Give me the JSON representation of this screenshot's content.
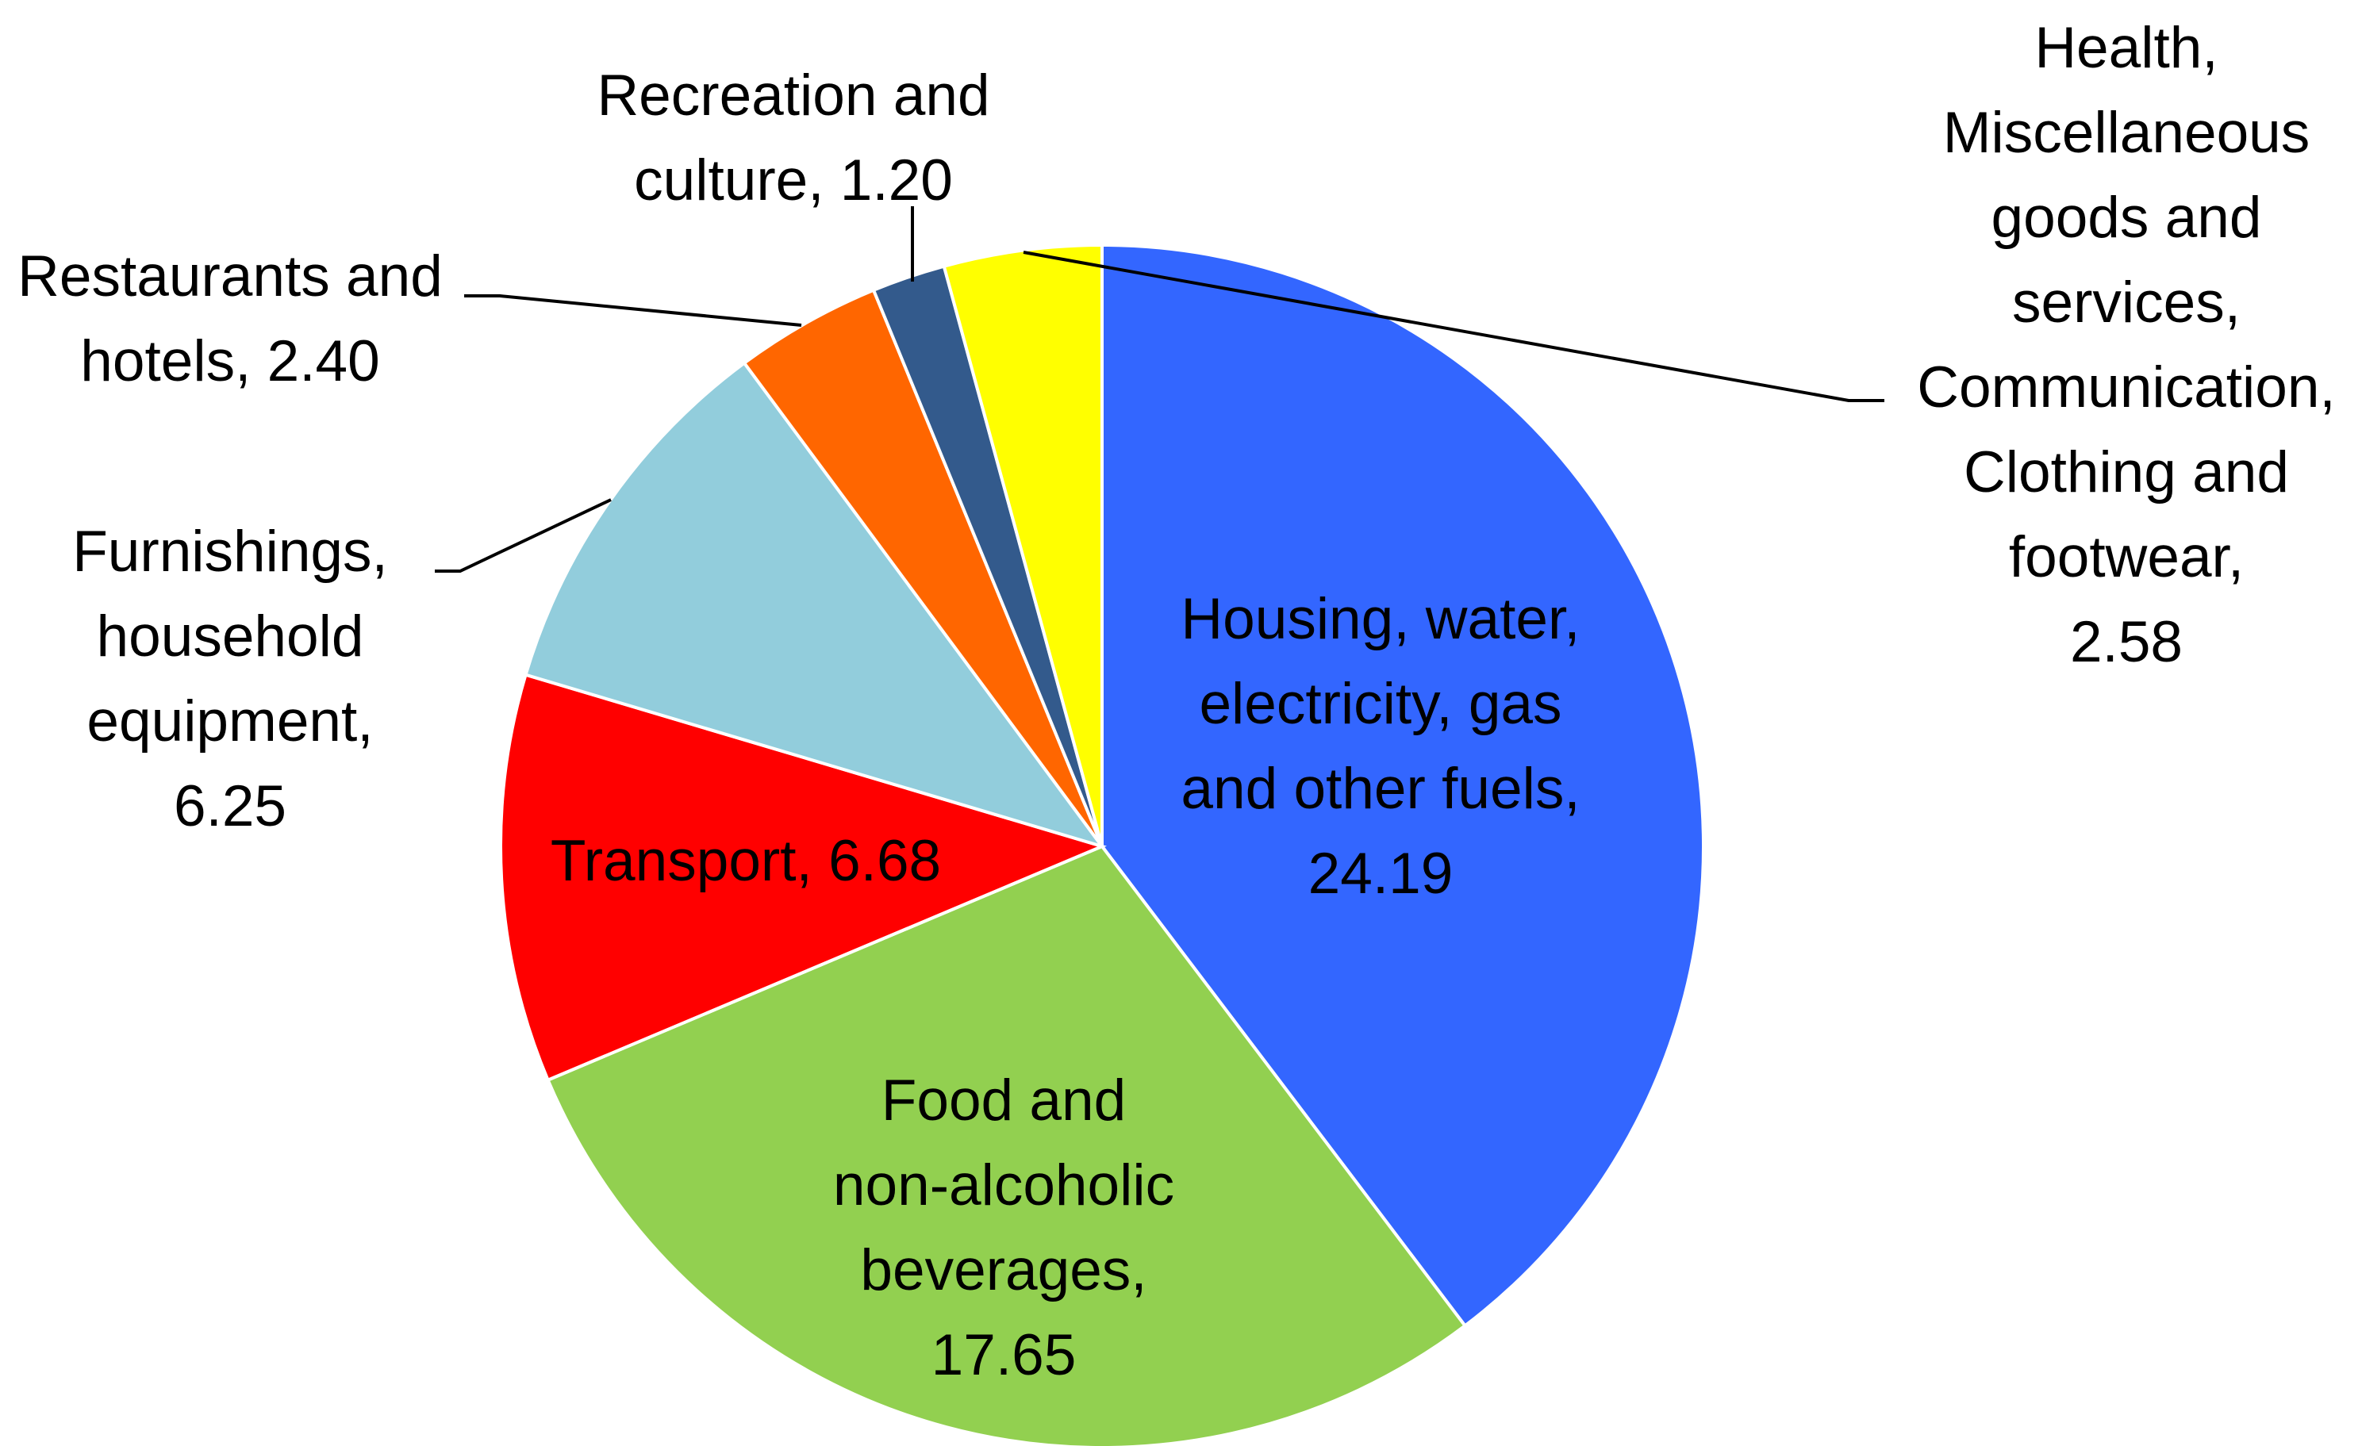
{
  "chart_data": {
    "type": "pie",
    "slices": [
      {
        "label": "Housing, water, electricity, gas and other fuels",
        "value": 24.19,
        "value_text": "24.19",
        "color": "#3366FF"
      },
      {
        "label": "Food and non-alcoholic beverages",
        "value": 17.65,
        "value_text": "17.65",
        "color": "#92D050"
      },
      {
        "label": "Transport",
        "value": 6.68,
        "value_text": "6.68",
        "color": "#FF0000"
      },
      {
        "label": "Furnishings, household equipment",
        "value": 6.25,
        "value_text": "6.25",
        "color": "#92CDDC"
      },
      {
        "label": "Restaurants and hotels",
        "value": 2.4,
        "value_text": "2.40",
        "color": "#FF6600"
      },
      {
        "label": "Recreation and culture",
        "value": 1.2,
        "value_text": "1.20",
        "color": "#335A8C"
      },
      {
        "label": "Health, Miscellaneous goods and services, Communication, Clothing and footwear",
        "value": 2.58,
        "value_text": "2.58",
        "color": "#FFFF00"
      }
    ],
    "label_text": [
      [
        "Housing, water,",
        "electricity, gas",
        "and other fuels,",
        "24.19"
      ],
      [
        "Food and",
        "non-alcoholic",
        "beverages,",
        "17.65"
      ],
      [
        "Transport, 6.68"
      ],
      [
        "Furnishings,",
        "household",
        "equipment,",
        "6.25"
      ],
      [
        "Restaurants and",
        "hotels, 2.40"
      ],
      [
        "Recreation and",
        "culture, 1.20"
      ],
      [
        "Health,",
        "Miscellaneous",
        "goods and",
        "services,",
        "Communication,",
        "Clothing and",
        "footwear,",
        "2.58"
      ]
    ],
    "start_angle_deg": 0,
    "direction": "clockwise"
  }
}
